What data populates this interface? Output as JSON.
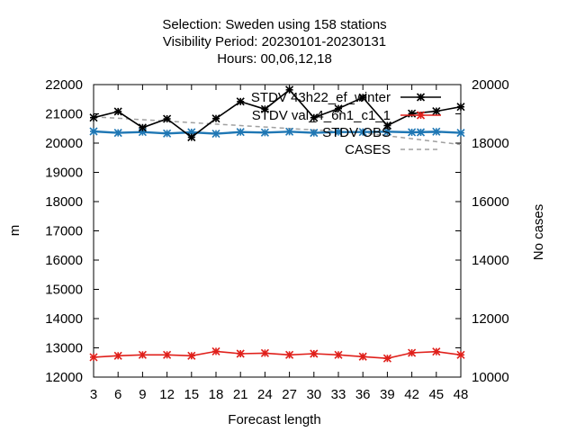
{
  "chart_data": {
    "type": "line",
    "title_lines": [
      "Selection: Sweden using   158 stations",
      "Visibility   Period: 20230101-20230131",
      "Hours:  00,06,12,18"
    ],
    "xlabel": "Forecast length",
    "ylabel": "m",
    "y2label": "No cases",
    "x": [
      3,
      6,
      9,
      12,
      15,
      18,
      21,
      24,
      27,
      30,
      33,
      36,
      39,
      42,
      45,
      48
    ],
    "xlim": [
      3,
      48
    ],
    "ylim": [
      12000,
      22000
    ],
    "y2lim": [
      10000,
      20000
    ],
    "yticks": [
      12000,
      13000,
      14000,
      15000,
      16000,
      17000,
      18000,
      19000,
      20000,
      21000,
      22000
    ],
    "y2ticks": [
      10000,
      12000,
      14000,
      16000,
      18000,
      20000
    ],
    "grid": false,
    "legend_position": "top-right",
    "series": [
      {
        "name": "STDV 43h22_ef_winter",
        "color": "#000000",
        "axis": "left",
        "marker": "star",
        "values": [
          20870,
          21080,
          20530,
          20830,
          20200,
          20840,
          21420,
          21160,
          21820,
          20870,
          21180,
          21560,
          20600,
          21010,
          21090,
          21240
        ]
      },
      {
        "name": "STDV val_4_6n1_c1_1",
        "color": "#e0201b",
        "axis": "left",
        "marker": "star",
        "values": [
          12680,
          12730,
          12760,
          12760,
          12730,
          12880,
          12800,
          12820,
          12760,
          12800,
          12760,
          12700,
          12640,
          12830,
          12870,
          12760
        ]
      },
      {
        "name": "STDV OBS",
        "color": "#1f77b4",
        "axis": "left",
        "marker": "star",
        "values": [
          20400,
          20350,
          20380,
          20330,
          20370,
          20320,
          20380,
          20360,
          20390,
          20350,
          20380,
          20380,
          20390,
          20370,
          20390,
          20350
        ]
      },
      {
        "name": "CASES",
        "color": "#a0a0a0",
        "axis": "right",
        "marker": "none",
        "dashed": true,
        "values": [
          18900,
          18850,
          18800,
          18750,
          18700,
          18650,
          18600,
          18550,
          18500,
          18450,
          18400,
          18350,
          18250,
          18150,
          18050,
          17950
        ]
      }
    ]
  }
}
